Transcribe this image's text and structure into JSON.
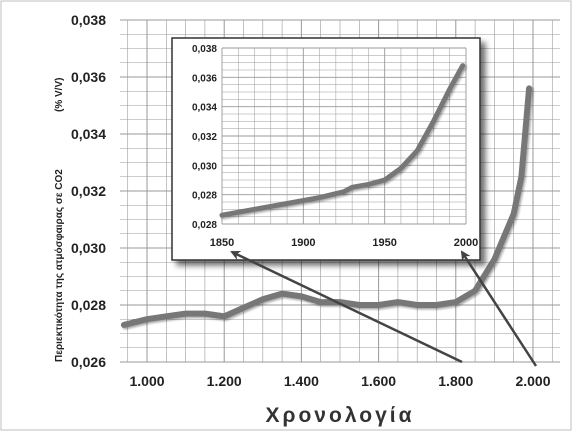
{
  "chart_data": [
    {
      "type": "line",
      "xlabel": "Χρονολογία",
      "ylabel": "Περιεκτικότητα της ατμόσφαιρας σε CO2",
      "ylabel_unit": "(% V/V)",
      "x_ticks": [
        "1.000",
        "1.200",
        "1.400",
        "1.600",
        "1.800",
        "2.000"
      ],
      "y_ticks": [
        "0,026",
        "0,028",
        "0,030",
        "0,032",
        "0,034",
        "0,036",
        "0,038"
      ],
      "xlim": [
        930,
        2070
      ],
      "ylim": [
        0.026,
        0.038
      ],
      "grid": true,
      "colors": {
        "line": "#777777",
        "grid": "#999999"
      },
      "series": [
        {
          "x": [
            940,
            1000,
            1050,
            1100,
            1150,
            1200,
            1250,
            1300,
            1350,
            1400,
            1450,
            1500,
            1550,
            1600,
            1650,
            1700,
            1750,
            1800,
            1850,
            1900,
            1950,
            1970,
            1990
          ],
          "values": [
            0.0273,
            0.0275,
            0.0276,
            0.0277,
            0.0277,
            0.0276,
            0.0279,
            0.0282,
            0.0284,
            0.0283,
            0.0281,
            0.0281,
            0.028,
            0.028,
            0.0281,
            0.028,
            0.028,
            0.0281,
            0.0285,
            0.0296,
            0.0312,
            0.0325,
            0.0356
          ]
        }
      ]
    },
    {
      "type": "line",
      "role": "inset",
      "x_ticks": [
        "1850",
        "1900",
        "1950",
        "2000"
      ],
      "y_ticks": [
        "0,028",
        "0,028",
        "0,030",
        "0,032",
        "0,034",
        "0,036",
        "0,038"
      ],
      "xlim": [
        1850,
        2000
      ],
      "ylim": [
        0.026,
        0.038
      ],
      "grid": true,
      "colors": {
        "line": "#777777",
        "grid": "#999999"
      },
      "series": [
        {
          "x": [
            1850,
            1870,
            1890,
            1910,
            1925,
            1930,
            1940,
            1950,
            1960,
            1970,
            1980,
            1990,
            1998
          ],
          "values": [
            0.0266,
            0.027,
            0.0274,
            0.0278,
            0.0282,
            0.0285,
            0.0287,
            0.029,
            0.0298,
            0.031,
            0.033,
            0.0352,
            0.0368
          ]
        }
      ]
    }
  ],
  "arrows": [
    {
      "from_x": "1.800",
      "to_x": "1850"
    },
    {
      "from_x": "2.000",
      "to_x": "2000"
    }
  ]
}
